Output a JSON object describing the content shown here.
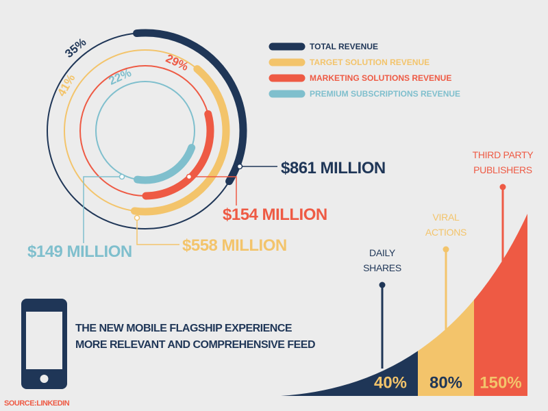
{
  "chart_data": [
    {
      "type": "radial",
      "series": [
        {
          "name": "TOTAL REVENUE",
          "color": "#1f3657",
          "values": [
            35
          ],
          "value_labels": [
            "35%"
          ],
          "amount_label": "$861 MILLION"
        },
        {
          "name": "TARGET SOLUTION REVENUE",
          "color": "#f3c46b",
          "values": [
            41
          ],
          "value_labels": [
            "41%"
          ],
          "amount_label": "$558 MILLION"
        },
        {
          "name": "MARKETING SOLUTIONS REVENUE",
          "color": "#ee5a44",
          "values": [
            29
          ],
          "value_labels": [
            "29%"
          ],
          "amount_label": "$154 MILLION"
        },
        {
          "name": "PREMIUM SUBSCRIPTIONS REVENUE",
          "color": "#7fbfcd",
          "values": [
            22
          ],
          "value_labels": [
            "22%"
          ],
          "amount_label": "$149 MILLION"
        }
      ]
    },
    {
      "type": "growth",
      "categories": [
        "DAILY SHARES",
        "VIRAL ACTIONS",
        "THIRD PARTY PUBLISHERS"
      ],
      "values": [
        40,
        80,
        150
      ],
      "value_labels": [
        "40%",
        "80%",
        "150%"
      ],
      "colors": [
        "#1f3657",
        "#f3c46b",
        "#ee5a44"
      ]
    }
  ],
  "caption": {
    "line1": "THE NEW MOBILE FLAGSHIP EXPERIENCE",
    "line2": "MORE RELEVANT AND COMPREHENSIVE FEED"
  },
  "source": "SOURCE:LINKEDIN"
}
